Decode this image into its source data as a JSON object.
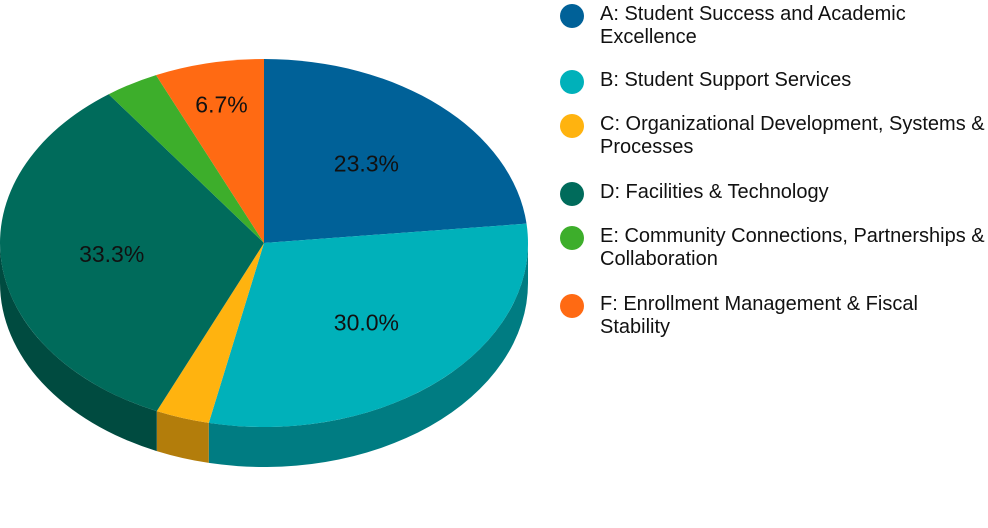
{
  "chart_data": {
    "type": "pie",
    "slices": [
      {
        "name": "A: Student Success and Academic Excellence",
        "value": 23.3,
        "label": "23.3%",
        "color": "#006198"
      },
      {
        "name": "B: Student Support Services",
        "value": 30.0,
        "label": "30.0%",
        "color": "#00B1BA"
      },
      {
        "name": "C: Organizational Development, Systems & Processes",
        "value": 3.3,
        "label": "",
        "color": "#FFB30F"
      },
      {
        "name": "D: Facilities & Technology",
        "value": 33.3,
        "label": "33.3%",
        "color": "#006B5B"
      },
      {
        "name": "E: Community Connections, Partnerships & Collaboration",
        "value": 3.3,
        "label": "",
        "color": "#3DAE2B"
      },
      {
        "name": "F: Enrollment Management & Fiscal Stability",
        "value": 6.7,
        "label": "6.7%",
        "color": "#FF6A13"
      }
    ],
    "legend_position": "right",
    "three_d": true
  }
}
